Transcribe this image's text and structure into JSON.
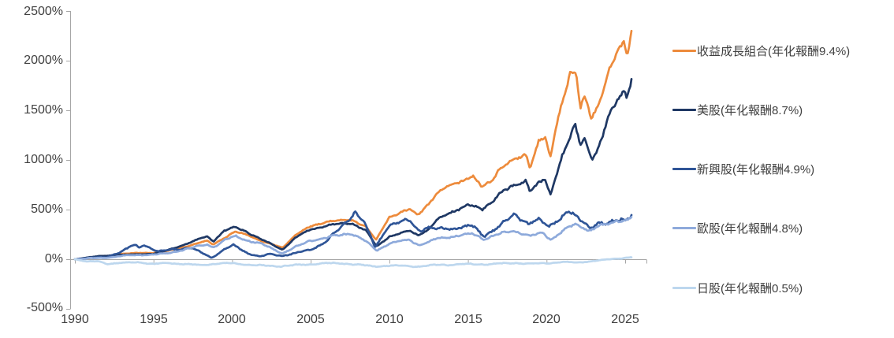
{
  "chart": {
    "y_ticks": [
      "2500%",
      "2000%",
      "1500%",
      "1000%",
      "500%",
      "0%",
      "-500%"
    ],
    "x_ticks": [
      "1990",
      "1995",
      "2000",
      "2005",
      "2010",
      "2015",
      "2020",
      "2025"
    ],
    "axis_color": "#A6A6A6",
    "text_color": "#404040",
    "background_color": "#FFFFFF"
  },
  "chart_data": {
    "type": "line",
    "title": "",
    "xlabel": "",
    "ylabel": "",
    "y_unit": "%",
    "x_range": [
      1990,
      2025.4
    ],
    "ylim_pct": [
      -500,
      2500
    ],
    "grid": false,
    "legend_position": "right",
    "x_tick_years": [
      1990,
      1995,
      2000,
      2005,
      2010,
      2015,
      2020,
      2025
    ],
    "y_tick_pct": [
      2500,
      2000,
      1500,
      1000,
      500,
      0,
      -500
    ],
    "series": [
      {
        "name": "收益成長組合(年化報酬9.4%)",
        "annualized_return_pct": 9.4,
        "color": "#ED8B3C",
        "points": [
          [
            1990,
            0
          ],
          [
            1991,
            15
          ],
          [
            1992,
            28
          ],
          [
            1993,
            55
          ],
          [
            1994,
            62
          ],
          [
            1995,
            65
          ],
          [
            1996,
            85
          ],
          [
            1997,
            125
          ],
          [
            1998.4,
            185
          ],
          [
            1998.8,
            150
          ],
          [
            1999.5,
            215
          ],
          [
            2000.2,
            275
          ],
          [
            2001,
            245
          ],
          [
            2002,
            175
          ],
          [
            2003.2,
            115
          ],
          [
            2004,
            240
          ],
          [
            2005,
            330
          ],
          [
            2006,
            380
          ],
          [
            2007.7,
            395
          ],
          [
            2008.5,
            330
          ],
          [
            2009.15,
            190
          ],
          [
            2010,
            430
          ],
          [
            2011.3,
            500
          ],
          [
            2011.8,
            448
          ],
          [
            2012.5,
            560
          ],
          [
            2013,
            655
          ],
          [
            2014,
            760
          ],
          [
            2015.3,
            830
          ],
          [
            2015.9,
            725
          ],
          [
            2016.5,
            800
          ],
          [
            2017,
            910
          ],
          [
            2018.7,
            1070
          ],
          [
            2018.95,
            925
          ],
          [
            2019.5,
            1180
          ],
          [
            2019.9,
            1220
          ],
          [
            2020.25,
            1020
          ],
          [
            2020.6,
            1350
          ],
          [
            2021,
            1600
          ],
          [
            2021.5,
            1870
          ],
          [
            2021.9,
            1830
          ],
          [
            2022.15,
            1500
          ],
          [
            2022.4,
            1640
          ],
          [
            2022.85,
            1445
          ],
          [
            2023.3,
            1570
          ],
          [
            2023.95,
            1860
          ],
          [
            2024.4,
            2050
          ],
          [
            2024.95,
            2200
          ],
          [
            2025.1,
            2080
          ],
          [
            2025.4,
            2300
          ]
        ]
      },
      {
        "name": "美股(年化報酬8.7%)",
        "annualized_return_pct": 8.7,
        "color": "#1F3864",
        "points": [
          [
            1990,
            0
          ],
          [
            1991,
            22
          ],
          [
            1992,
            35
          ],
          [
            1993,
            45
          ],
          [
            1994,
            48
          ],
          [
            1995,
            55
          ],
          [
            1996,
            95
          ],
          [
            1997,
            150
          ],
          [
            1998.4,
            230
          ],
          [
            1998.8,
            180
          ],
          [
            1999.5,
            290
          ],
          [
            2000.2,
            320
          ],
          [
            2001,
            270
          ],
          [
            2002,
            190
          ],
          [
            2003.2,
            95
          ],
          [
            2004,
            215
          ],
          [
            2005,
            300
          ],
          [
            2006,
            340
          ],
          [
            2007.6,
            365
          ],
          [
            2008.5,
            290
          ],
          [
            2009.2,
            127
          ],
          [
            2010,
            230
          ],
          [
            2011.3,
            285
          ],
          [
            2011.8,
            243
          ],
          [
            2012.5,
            300
          ],
          [
            2013,
            390
          ],
          [
            2014,
            480
          ],
          [
            2015,
            548
          ],
          [
            2015.9,
            500
          ],
          [
            2016.5,
            580
          ],
          [
            2017,
            660
          ],
          [
            2018.7,
            800
          ],
          [
            2018.95,
            690
          ],
          [
            2019.5,
            760
          ],
          [
            2019.9,
            800
          ],
          [
            2020.25,
            645
          ],
          [
            2020.6,
            850
          ],
          [
            2021,
            1050
          ],
          [
            2021.8,
            1340
          ],
          [
            2022.15,
            1150
          ],
          [
            2022.4,
            1230
          ],
          [
            2022.9,
            1020
          ],
          [
            2023.3,
            1120
          ],
          [
            2023.95,
            1420
          ],
          [
            2024.5,
            1600
          ],
          [
            2024.95,
            1720
          ],
          [
            2025.1,
            1640
          ],
          [
            2025.4,
            1815
          ]
        ]
      },
      {
        "name": "新興股(年化報酬4.9%)",
        "annualized_return_pct": 4.9,
        "color": "#2F5597",
        "points": [
          [
            1990,
            0
          ],
          [
            1991,
            15
          ],
          [
            1992,
            20
          ],
          [
            1993,
            80
          ],
          [
            1993.8,
            145
          ],
          [
            1994.1,
            115
          ],
          [
            1994.4,
            150
          ],
          [
            1995.3,
            75
          ],
          [
            1996,
            95
          ],
          [
            1997.4,
            115
          ],
          [
            1998.7,
            15
          ],
          [
            1999.5,
            100
          ],
          [
            2000.1,
            140
          ],
          [
            2001,
            60
          ],
          [
            2001.8,
            25
          ],
          [
            2002.3,
            50
          ],
          [
            2003.2,
            35
          ],
          [
            2004,
            60
          ],
          [
            2005,
            95
          ],
          [
            2006,
            180
          ],
          [
            2007,
            330
          ],
          [
            2007.8,
            480
          ],
          [
            2008.3,
            400
          ],
          [
            2009.1,
            120
          ],
          [
            2010,
            350
          ],
          [
            2011.3,
            390
          ],
          [
            2011.9,
            290
          ],
          [
            2012.3,
            320
          ],
          [
            2013,
            300
          ],
          [
            2014,
            315
          ],
          [
            2015.3,
            330
          ],
          [
            2016,
            235
          ],
          [
            2017,
            330
          ],
          [
            2018,
            460
          ],
          [
            2018.8,
            360
          ],
          [
            2019.5,
            390
          ],
          [
            2020.15,
            330
          ],
          [
            2020.5,
            380
          ],
          [
            2021.4,
            470
          ],
          [
            2021.9,
            420
          ],
          [
            2022.75,
            330
          ],
          [
            2023.2,
            360
          ],
          [
            2023.8,
            350
          ],
          [
            2024.3,
            380
          ],
          [
            2024.8,
            420
          ],
          [
            2025.05,
            400
          ],
          [
            2025.4,
            445
          ]
        ]
      },
      {
        "name": "歐股(年化報酬4.8%)",
        "annualized_return_pct": 4.8,
        "color": "#8EAADB",
        "points": [
          [
            1990,
            0
          ],
          [
            1991,
            10
          ],
          [
            1992,
            14
          ],
          [
            1993,
            35
          ],
          [
            1994,
            42
          ],
          [
            1995,
            48
          ],
          [
            1996,
            60
          ],
          [
            1997,
            100
          ],
          [
            1998.4,
            150
          ],
          [
            1998.8,
            120
          ],
          [
            1999.5,
            190
          ],
          [
            2000.2,
            230
          ],
          [
            2001,
            190
          ],
          [
            2002,
            145
          ],
          [
            2003.2,
            60
          ],
          [
            2004,
            120
          ],
          [
            2005,
            190
          ],
          [
            2006,
            215
          ],
          [
            2007.5,
            265
          ],
          [
            2008.5,
            180
          ],
          [
            2009.2,
            88
          ],
          [
            2010,
            160
          ],
          [
            2011.3,
            195
          ],
          [
            2011.9,
            142
          ],
          [
            2012.5,
            170
          ],
          [
            2013,
            205
          ],
          [
            2014,
            232
          ],
          [
            2015.3,
            255
          ],
          [
            2016,
            205
          ],
          [
            2017,
            255
          ],
          [
            2018,
            285
          ],
          [
            2018.95,
            235
          ],
          [
            2019.8,
            260
          ],
          [
            2020.25,
            200
          ],
          [
            2020.8,
            260
          ],
          [
            2021.4,
            320
          ],
          [
            2021.95,
            350
          ],
          [
            2022.7,
            290
          ],
          [
            2023.2,
            330
          ],
          [
            2023.9,
            345
          ],
          [
            2024.5,
            390
          ],
          [
            2025,
            395
          ],
          [
            2025.4,
            426
          ]
        ]
      },
      {
        "name": "日股(年化報酬0.5%)",
        "annualized_return_pct": 0.5,
        "color": "#BDD7EE",
        "points": [
          [
            1990,
            0
          ],
          [
            1990.8,
            -25
          ],
          [
            1991.5,
            -20
          ],
          [
            1992,
            -45
          ],
          [
            1993,
            -38
          ],
          [
            1994,
            -30
          ],
          [
            1995,
            -48
          ],
          [
            1996,
            -38
          ],
          [
            1997,
            -50
          ],
          [
            1998,
            -60
          ],
          [
            1999,
            -45
          ],
          [
            2000,
            -40
          ],
          [
            2001,
            -55
          ],
          [
            2002,
            -65
          ],
          [
            2003,
            -70
          ],
          [
            2004,
            -60
          ],
          [
            2005,
            -52
          ],
          [
            2006,
            -40
          ],
          [
            2007,
            -42
          ],
          [
            2008,
            -55
          ],
          [
            2009,
            -72
          ],
          [
            2010,
            -65
          ],
          [
            2011,
            -68
          ],
          [
            2012,
            -72
          ],
          [
            2013,
            -58
          ],
          [
            2014,
            -55
          ],
          [
            2015,
            -48
          ],
          [
            2016,
            -52
          ],
          [
            2017,
            -45
          ],
          [
            2018,
            -38
          ],
          [
            2019,
            -45
          ],
          [
            2020,
            -40
          ],
          [
            2021,
            -28
          ],
          [
            2022,
            -32
          ],
          [
            2023,
            -18
          ],
          [
            2024,
            0
          ],
          [
            2025.4,
            19
          ]
        ]
      }
    ]
  }
}
